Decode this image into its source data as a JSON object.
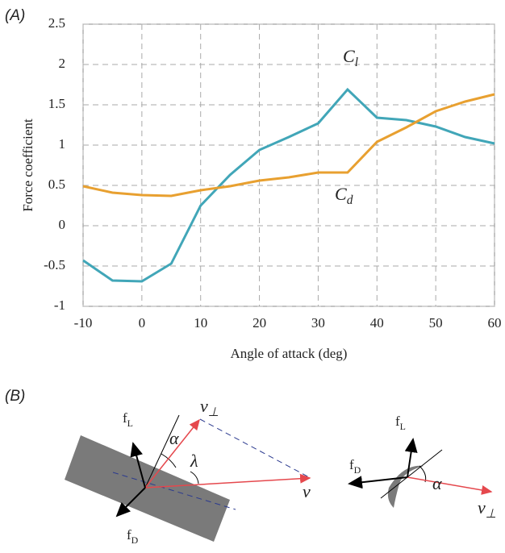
{
  "chart_data": {
    "type": "line",
    "panel_label": "(A)",
    "xlabel": "Angle of attack (deg)",
    "ylabel": "Force coefficient",
    "x": [
      -10,
      -5,
      0,
      5,
      10,
      15,
      20,
      25,
      30,
      35,
      40,
      45,
      50,
      55,
      60
    ],
    "series": [
      {
        "name": "Cl",
        "color": "#41a6b8",
        "values": [
          -0.43,
          -0.68,
          -0.69,
          -0.47,
          0.25,
          0.63,
          0.94,
          1.1,
          1.27,
          1.69,
          1.34,
          1.31,
          1.23,
          1.1,
          1.02
        ]
      },
      {
        "name": "Cd",
        "color": "#e8a030",
        "values": [
          0.49,
          0.41,
          0.38,
          0.37,
          0.44,
          0.49,
          0.56,
          0.6,
          0.66,
          0.66,
          1.04,
          1.22,
          1.42,
          1.54,
          1.63
        ]
      }
    ],
    "xlim": [
      -10,
      60
    ],
    "xticks": [
      -10,
      0,
      10,
      20,
      30,
      40,
      50,
      60
    ],
    "ylim": [
      -1,
      2.5
    ],
    "yticks": [
      -1,
      -0.5,
      0,
      0.5,
      1,
      1.5,
      2,
      2.5
    ],
    "grid": true
  },
  "diagram": {
    "panel_label": "(B)",
    "left": {
      "lift": "fL",
      "alpha": "α",
      "v_perp": "v⊥",
      "lambda": "λ",
      "v": "v",
      "drag": "fD"
    },
    "right": {
      "lift": "fL",
      "drag": "fD",
      "alpha": "α",
      "v_perp": "v⊥"
    }
  }
}
